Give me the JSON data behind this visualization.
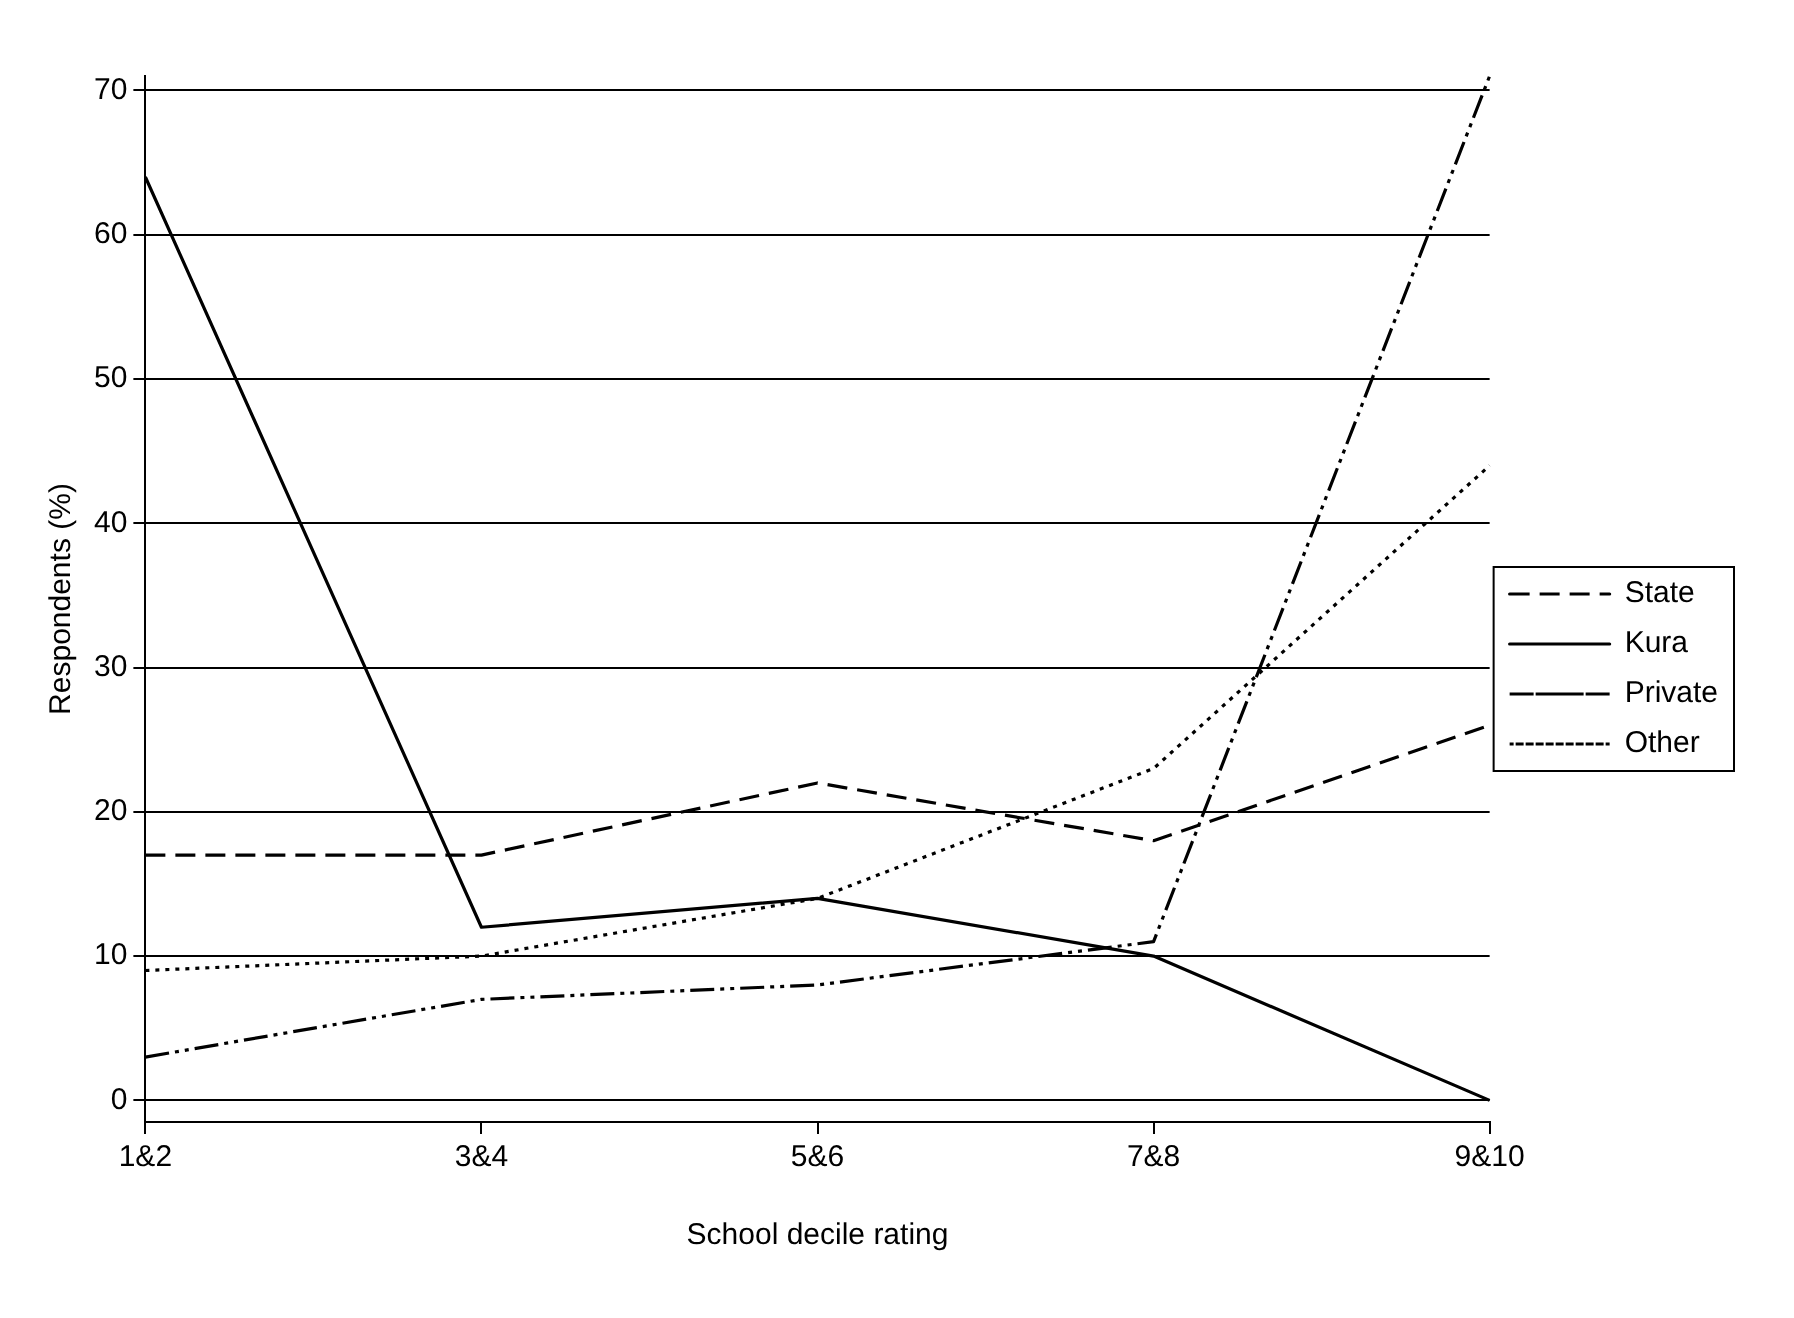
{
  "chart_data": {
    "type": "line",
    "xlabel": "School decile rating",
    "ylabel": "Respondents (%)",
    "categories": [
      "1&2",
      "3&4",
      "5&6",
      "7&8",
      "9&10"
    ],
    "series": [
      {
        "name": "State",
        "color": "#000000",
        "line_style": "dashed",
        "values": [
          17,
          17,
          22,
          18,
          26
        ]
      },
      {
        "name": "Kura",
        "color": "#000000",
        "line_style": "solid",
        "values": [
          64,
          12,
          14,
          10,
          0
        ]
      },
      {
        "name": "Private",
        "color": "#000000",
        "line_style": "dashdot",
        "values": [
          3,
          7,
          8,
          11,
          71
        ]
      },
      {
        "name": "Other",
        "color": "#000000",
        "line_style": "dotted",
        "values": [
          9,
          10,
          14,
          23,
          44
        ]
      }
    ],
    "ylim": [
      -1.5,
      71
    ],
    "yticks": [
      0,
      10,
      20,
      30,
      40,
      50,
      60,
      70
    ],
    "grid": "y",
    "legend": "right",
    "marker": "none"
  }
}
